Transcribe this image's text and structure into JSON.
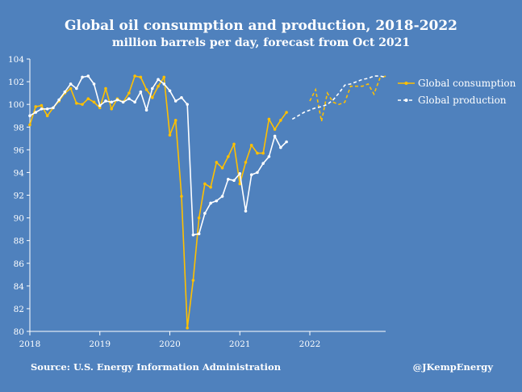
{
  "title": "Global oil consumption and production, 2018-2022",
  "subtitle": "million barrels per day, forecast from Oct 2021",
  "source": "Source: U.S. Energy Information Administration",
  "credit": "@JKempEnergy",
  "colors": {
    "background": "#4f81bd",
    "consumption": "#ffc000",
    "production": "#ffffff",
    "axis": "#ffffff"
  },
  "chart_data": {
    "type": "line",
    "x_unit": "month",
    "x_start": "2018-01",
    "forecast_start": "2021-10",
    "xticks": [
      "2018",
      "2019",
      "2020",
      "2021",
      "2022"
    ],
    "ylim": [
      80,
      104
    ],
    "yticks": [
      80,
      82,
      84,
      86,
      88,
      90,
      92,
      94,
      96,
      98,
      100,
      102,
      104
    ],
    "grid": false,
    "legend": "right",
    "series": [
      {
        "name": "Global consumption",
        "color": "#ffc000",
        "values": [
          98.2,
          99.8,
          99.9,
          99.0,
          99.7,
          100.3,
          101.0,
          101.4,
          100.1,
          100.0,
          100.5,
          100.2,
          99.7,
          101.4,
          99.6,
          100.5,
          100.2,
          101.0,
          102.5,
          102.4,
          101.3,
          100.6,
          101.6,
          102.4,
          97.3,
          98.6,
          91.9,
          80.3,
          84.5,
          90.0,
          93.0,
          92.7,
          94.9,
          94.4,
          95.4,
          96.5,
          93.0,
          94.9,
          96.4,
          95.7,
          95.7,
          98.7,
          97.8,
          98.6,
          99.3,
          null,
          null,
          null,
          100.3,
          101.3,
          98.5,
          101.0,
          100.2,
          100.0,
          100.2,
          101.6,
          101.6,
          101.6,
          101.8,
          100.9,
          102.3,
          102.5
        ]
      },
      {
        "name": "Global production",
        "color": "#ffffff",
        "values": [
          99.0,
          99.3,
          99.6,
          99.6,
          99.7,
          100.4,
          101.1,
          101.8,
          101.4,
          102.4,
          102.5,
          101.8,
          99.9,
          100.3,
          100.2,
          100.4,
          100.2,
          100.5,
          100.2,
          101.1,
          99.5,
          101.4,
          102.2,
          101.8,
          101.2,
          100.3,
          100.6,
          100.0,
          88.5,
          88.6,
          90.4,
          91.3,
          91.5,
          91.9,
          93.4,
          93.3,
          93.9,
          90.6,
          93.8,
          94.0,
          94.8,
          95.4,
          97.2,
          96.2,
          96.7,
          98.7,
          99.0,
          99.3,
          99.5,
          99.7,
          99.8,
          100.0,
          100.4,
          101.0,
          101.7,
          101.8,
          102.0,
          102.2,
          102.3,
          102.5,
          102.5,
          102.4
        ]
      }
    ]
  }
}
